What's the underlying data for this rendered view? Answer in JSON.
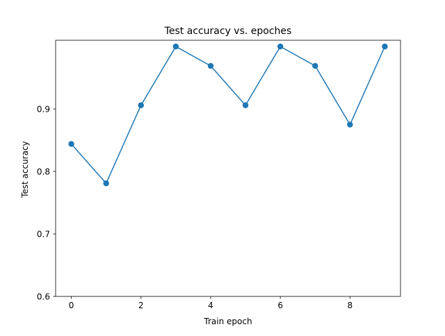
{
  "chart_data": {
    "type": "line",
    "title": "Test accuracy vs. epoches",
    "xlabel": "Train epoch",
    "ylabel": "Test accuracy",
    "x": [
      0,
      1,
      2,
      3,
      4,
      5,
      6,
      7,
      8,
      9
    ],
    "series": [
      {
        "values": [
          0.844,
          0.781,
          0.906,
          1.0,
          0.969,
          0.906,
          1.0,
          0.969,
          0.875,
          1.0
        ],
        "color": "#1f77b4",
        "marker": "circle"
      }
    ],
    "xlim": [
      -0.45,
      9.45
    ],
    "ylim": [
      0.6,
      1.01
    ],
    "xticks": [
      0,
      2,
      4,
      6,
      8
    ],
    "xtick_labels": [
      "0",
      "2",
      "4",
      "6",
      "8"
    ],
    "yticks": [
      0.6,
      0.7,
      0.8,
      0.9
    ],
    "ytick_labels": [
      "0.6",
      "0.7",
      "0.8",
      "0.9"
    ],
    "grid": false,
    "legend": false
  }
}
